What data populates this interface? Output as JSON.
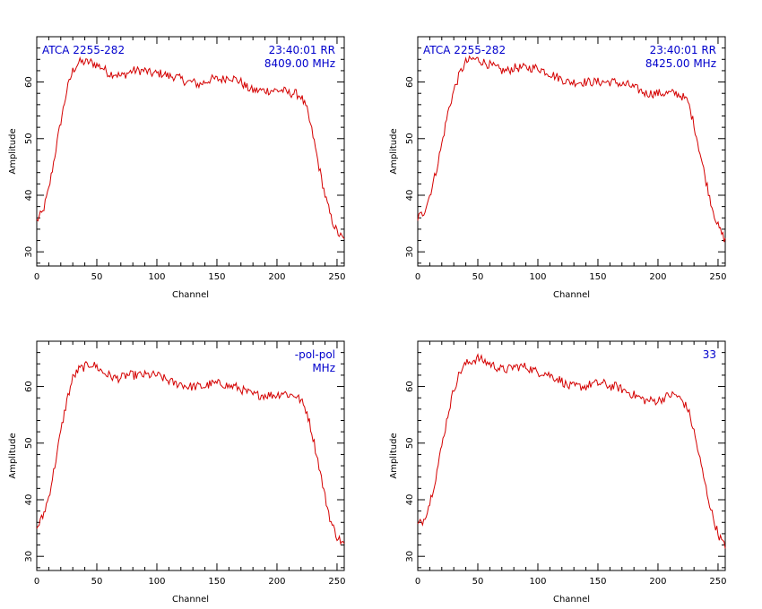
{
  "chart_data": [
    {
      "type": "line",
      "xlabel": "Channel",
      "ylabel": "Amplitude",
      "xlim": [
        0,
        256
      ],
      "ylim": [
        27.5,
        68
      ],
      "xticks": [
        0,
        50,
        100,
        150,
        200,
        250
      ],
      "yticks": [
        30,
        40,
        50,
        60
      ],
      "annotation_left": "ATCA 2255-282",
      "annotation_right": [
        "23:40:01  RR",
        "8409.00  MHz"
      ],
      "series": [
        {
          "color": "#d40000",
          "x": [
            0,
            5,
            10,
            15,
            20,
            25,
            30,
            35,
            40,
            45,
            50,
            55,
            60,
            65,
            70,
            75,
            80,
            85,
            90,
            95,
            100,
            105,
            110,
            115,
            120,
            125,
            130,
            135,
            140,
            145,
            150,
            155,
            160,
            165,
            170,
            175,
            180,
            185,
            190,
            195,
            200,
            205,
            210,
            215,
            220,
            225,
            230,
            235,
            240,
            245,
            250,
            256
          ],
          "y": [
            35.5,
            37,
            41,
            47,
            53,
            58.5,
            62,
            63.5,
            63.5,
            63.5,
            63,
            62.5,
            61.5,
            61.5,
            61,
            61.5,
            62,
            62,
            62,
            61.5,
            61.5,
            61.5,
            61,
            61,
            60.5,
            60,
            60,
            59.5,
            60,
            60.5,
            60.5,
            60.5,
            61,
            60.5,
            60,
            59,
            58.5,
            58.5,
            58.5,
            58.5,
            58.5,
            58.5,
            58,
            58,
            57.5,
            55,
            50.5,
            45,
            40,
            36,
            33.5,
            32
          ]
        }
      ]
    },
    {
      "type": "line",
      "xlabel": "Channel",
      "ylabel": "Amplitude",
      "xlim": [
        0,
        256
      ],
      "ylim": [
        27.5,
        68
      ],
      "xticks": [
        0,
        50,
        100,
        150,
        200,
        250
      ],
      "yticks": [
        30,
        40,
        50,
        60
      ],
      "annotation_left": "ATCA 2255-282",
      "annotation_right": [
        "23:40:01  RR",
        "8425.00  MHz"
      ],
      "series": [
        {
          "color": "#d40000",
          "x": [
            0,
            5,
            10,
            15,
            20,
            25,
            30,
            35,
            40,
            45,
            50,
            55,
            60,
            65,
            70,
            75,
            80,
            85,
            90,
            95,
            100,
            105,
            110,
            115,
            120,
            125,
            130,
            135,
            140,
            145,
            150,
            155,
            160,
            165,
            170,
            175,
            180,
            185,
            190,
            195,
            200,
            205,
            210,
            215,
            220,
            225,
            230,
            235,
            240,
            245,
            250,
            256
          ],
          "y": [
            36,
            37,
            40,
            44,
            49,
            54.5,
            58.5,
            61.5,
            63.5,
            64,
            64,
            63.5,
            63,
            62.5,
            62,
            62,
            62.5,
            62.5,
            62.5,
            62.5,
            62.5,
            62,
            61.5,
            61,
            60.5,
            60,
            60,
            60,
            60,
            60,
            60,
            60,
            60,
            60,
            59.5,
            59.5,
            59,
            58.5,
            58,
            58,
            58,
            58,
            58,
            58,
            57.5,
            56.5,
            52.5,
            47.5,
            42.5,
            38,
            34.5,
            32
          ]
        }
      ]
    },
    {
      "type": "line",
      "xlabel": "Channel",
      "ylabel": "Amplitude",
      "xlim": [
        0,
        256
      ],
      "ylim": [
        27.5,
        68
      ],
      "xticks": [
        0,
        50,
        100,
        150,
        200,
        250
      ],
      "yticks": [
        30,
        40,
        50,
        60
      ],
      "annotation_left": "",
      "annotation_right": [
        "-pol-pol",
        "MHz"
      ],
      "series": [
        {
          "color": "#d40000",
          "x": [
            0,
            5,
            10,
            15,
            20,
            25,
            30,
            35,
            40,
            45,
            50,
            55,
            60,
            65,
            70,
            75,
            80,
            85,
            90,
            95,
            100,
            105,
            110,
            115,
            120,
            125,
            130,
            135,
            140,
            145,
            150,
            155,
            160,
            165,
            170,
            175,
            180,
            185,
            190,
            195,
            200,
            205,
            210,
            215,
            220,
            225,
            230,
            235,
            240,
            245,
            250,
            256
          ],
          "y": [
            35,
            37,
            40.5,
            46,
            52,
            57.5,
            61.5,
            63,
            63.5,
            64,
            63.5,
            62.5,
            62,
            61.5,
            61.5,
            62,
            62,
            62,
            62,
            62,
            62,
            61.5,
            61,
            60.5,
            60.5,
            60,
            60,
            60,
            60,
            60.5,
            60.5,
            60.5,
            60,
            60,
            59.5,
            59,
            58.5,
            58.5,
            58.5,
            58.5,
            58.5,
            59,
            58.5,
            58.5,
            57.5,
            55.5,
            51,
            46,
            40.5,
            36,
            33.5,
            32
          ]
        }
      ]
    },
    {
      "type": "line",
      "xlabel": "Channel",
      "ylabel": "Amplitude",
      "xlim": [
        0,
        256
      ],
      "ylim": [
        27.5,
        68
      ],
      "xticks": [
        0,
        50,
        100,
        150,
        200,
        250
      ],
      "yticks": [
        30,
        40,
        50,
        60
      ],
      "annotation_left": "",
      "annotation_right": [
        "33"
      ],
      "series": [
        {
          "color": "#d40000",
          "x": [
            0,
            5,
            10,
            15,
            20,
            25,
            30,
            35,
            40,
            45,
            50,
            55,
            60,
            65,
            70,
            75,
            80,
            85,
            90,
            95,
            100,
            105,
            110,
            115,
            120,
            125,
            130,
            135,
            140,
            145,
            150,
            155,
            160,
            165,
            170,
            175,
            180,
            185,
            190,
            195,
            200,
            205,
            210,
            215,
            220,
            225,
            230,
            235,
            240,
            245,
            250,
            256
          ],
          "y": [
            35.5,
            36.5,
            39.5,
            44,
            49.5,
            55,
            59.5,
            62.5,
            64,
            64.5,
            65,
            64.5,
            64,
            63.5,
            63,
            63,
            63.5,
            63.5,
            63.5,
            63,
            62.5,
            62.5,
            62,
            61.5,
            61,
            60,
            60,
            60,
            60,
            60.5,
            60.5,
            60.5,
            60,
            60,
            59.5,
            59,
            58.5,
            58,
            57.5,
            57.5,
            57.5,
            58,
            58.5,
            58.5,
            57.5,
            56,
            52,
            47,
            42,
            37.5,
            34,
            31.5
          ]
        }
      ]
    }
  ],
  "colors": {
    "trace": "#d40000",
    "annotation": "#0000cc",
    "axes": "#000000"
  }
}
